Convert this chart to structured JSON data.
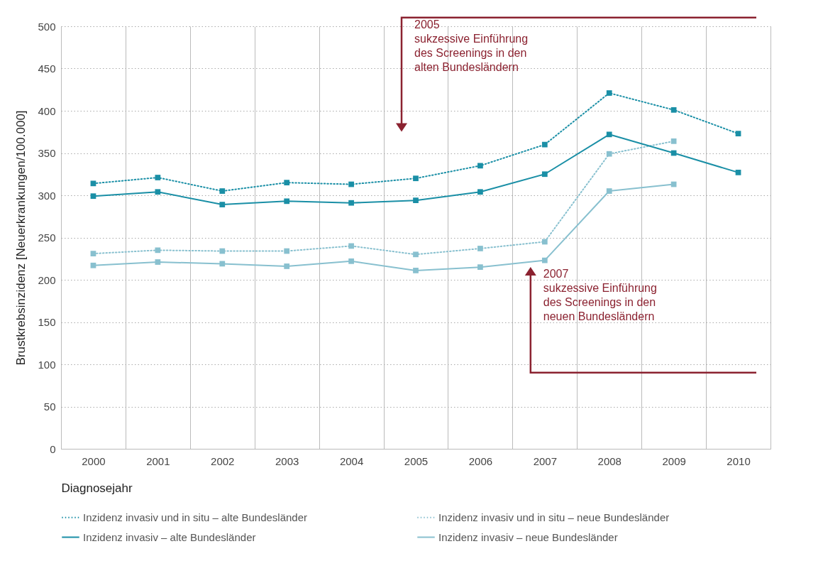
{
  "chart_data": {
    "type": "line",
    "xlabel": "Diagnosejahr",
    "ylabel": "Brustkrebsinzidenz [Neuerkrankungen/100.000]",
    "categories": [
      "2000",
      "2001",
      "2002",
      "2003",
      "2004",
      "2005",
      "2006",
      "2007",
      "2008",
      "2009",
      "2010"
    ],
    "ylim": [
      0,
      500
    ],
    "yticks": [
      0,
      50,
      100,
      150,
      200,
      250,
      300,
      350,
      400,
      450,
      500
    ],
    "grid": true,
    "legend": "bottom",
    "marker": "square",
    "series": [
      {
        "name": "Inzidenz invasiv und in situ – alte Bundesländer",
        "color": "#1a8fa6",
        "line_style": "dotted",
        "values": [
          314,
          321,
          305,
          315,
          313,
          320,
          335,
          360,
          421,
          401,
          373
        ]
      },
      {
        "name": "Inzidenz invasiv und in situ – neue Bundesländer",
        "color": "#88c0cf",
        "line_style": "dotted",
        "values": [
          231,
          235,
          234,
          234,
          240,
          230,
          237,
          245,
          349,
          364,
          null
        ]
      },
      {
        "name": "Inzidenz invasiv – alte Bundesländer",
        "color": "#1a8fa6",
        "line_style": "solid",
        "values": [
          299,
          304,
          289,
          293,
          291,
          294,
          304,
          325,
          372,
          350,
          327
        ]
      },
      {
        "name": "Inzidenz invasiv – neue Bundesländer",
        "color": "#88c0cf",
        "line_style": "solid",
        "values": [
          217,
          221,
          219,
          216,
          222,
          211,
          215,
          223,
          305,
          313,
          null
        ]
      }
    ],
    "annotations": [
      "2005\nsukzessive Einführung\ndes Screenings in den\nalten Bundesländern",
      "2007\nsukzessive Einführung\ndes Screenings in den\nneuen Bundesländern"
    ]
  }
}
